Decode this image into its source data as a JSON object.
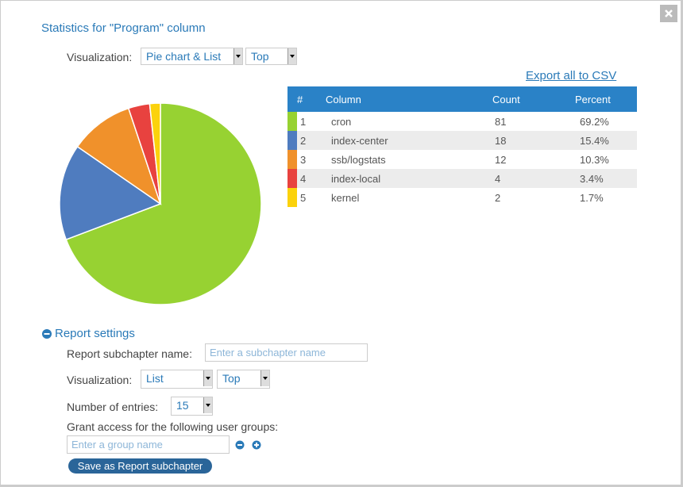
{
  "dialog": {
    "title": "Statistics for \"Program\" column",
    "visualization": {
      "label": "Visualization:",
      "type": "Pie chart & List",
      "order": "Top"
    },
    "export_link": "Export all to CSV",
    "table": {
      "headers": [
        "#",
        "Column",
        "Count",
        "Percent"
      ],
      "rows": [
        {
          "rank": 1,
          "name": "cron",
          "count": 81,
          "percent": "69.2%",
          "color": "#97d232"
        },
        {
          "rank": 2,
          "name": "index-center",
          "count": 18,
          "percent": "15.4%",
          "color": "#4f7cbf"
        },
        {
          "rank": 3,
          "name": "ssb/logstats",
          "count": 12,
          "percent": "10.3%",
          "color": "#f0912b"
        },
        {
          "rank": 4,
          "name": "index-local",
          "count": 4,
          "percent": "3.4%",
          "color": "#e8423f"
        },
        {
          "rank": 5,
          "name": "kernel",
          "count": 2,
          "percent": "1.7%",
          "color": "#fbd20c"
        }
      ]
    },
    "report_settings": {
      "title": "Report settings",
      "subchapter_label": "Report subchapter name:",
      "subchapter_placeholder": "Enter a subchapter name",
      "visualization_label": "Visualization:",
      "visualization_type": "List",
      "visualization_order": "Top",
      "entries_label": "Number of entries:",
      "entries_value": "15",
      "groups_label": "Grant access for the following user groups:",
      "group_placeholder": "Enter a group name",
      "save_button": "Save as Report subchapter"
    }
  }
}
